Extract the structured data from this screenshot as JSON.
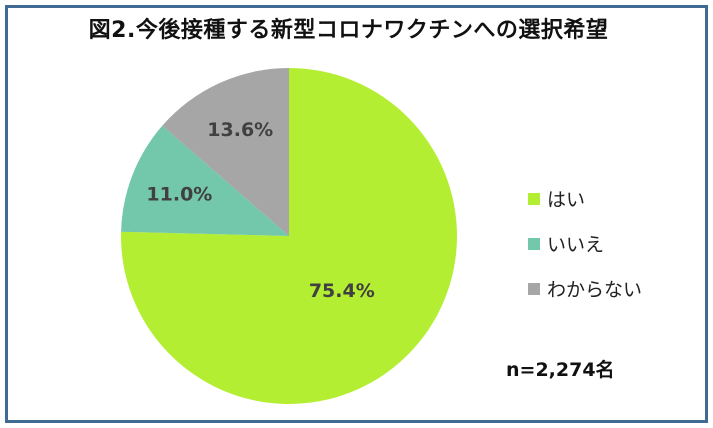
{
  "chart_data": {
    "type": "pie",
    "title": "図2.今後接種する新型コロナワクチンへの選択希望",
    "slices": [
      {
        "label": "はい",
        "value": 75.4,
        "display": "75.4%",
        "color": "#b4ee32"
      },
      {
        "label": "いいえ",
        "value": 11.0,
        "display": "11.0%",
        "color": "#73c7ab"
      },
      {
        "label": "わからない",
        "value": 13.6,
        "display": "13.6%",
        "color": "#a6a6a6"
      }
    ],
    "start_angle_deg": 0,
    "direction": "clockwise",
    "legend_position": "right",
    "note": "n=2,274名"
  }
}
